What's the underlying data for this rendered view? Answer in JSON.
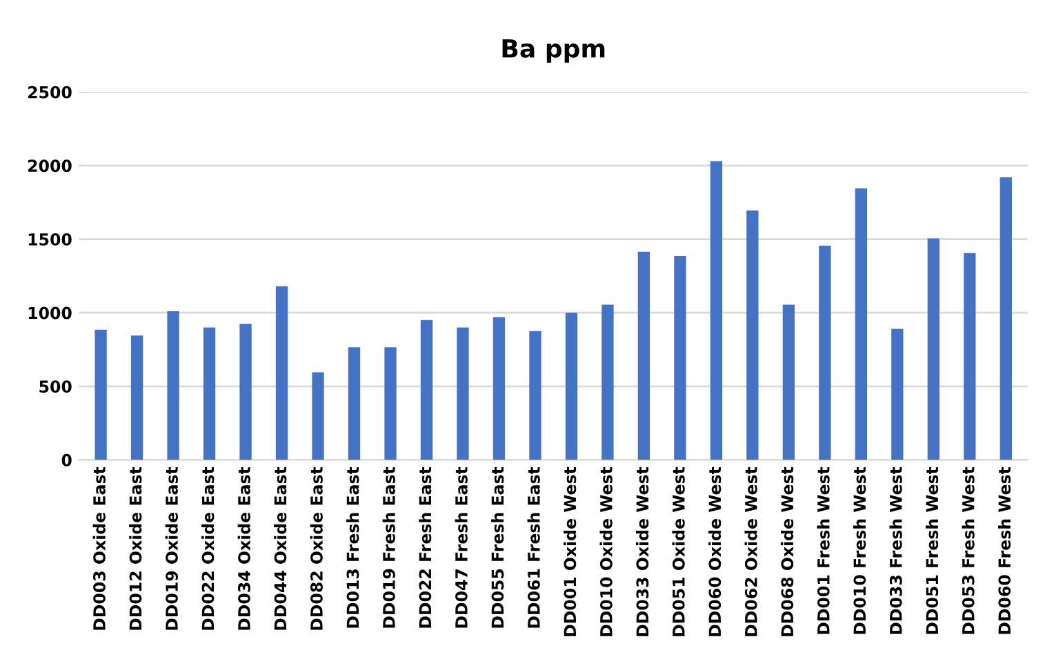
{
  "chart_data": {
    "type": "bar",
    "title": "Ba ppm",
    "categories": [
      "DD003 Oxide East",
      "DD012 Oxide East",
      "DD019 Oxide East",
      "DD022 Oxide East",
      "DD034 Oxide East",
      "DD044 Oxide East",
      "DD082 Oxide East",
      "DD013 Fresh East",
      "DD019 Fresh East",
      "DD022 Fresh East",
      "DD047 Fresh East",
      "DD055 Fresh East",
      "DD061 Fresh East",
      "DD001 Oxide West",
      "DD010 Oxide West",
      "DD033 Oxide West",
      "DD051 Oxide West",
      "DD060 Oxide West",
      "DD062 Oxide West",
      "DD068 Oxide West",
      "DD001 Fresh West",
      "DD010 Fresh West",
      "DD033 Fresh West",
      "DD051 Fresh West",
      "DD053 Fresh West",
      "DD060 Fresh West"
    ],
    "values": [
      885,
      845,
      1010,
      900,
      925,
      1180,
      595,
      765,
      765,
      950,
      900,
      970,
      875,
      1000,
      1055,
      1415,
      1385,
      2030,
      1695,
      1055,
      1455,
      1845,
      890,
      1505,
      1405,
      1920
    ],
    "color": "#4472c4",
    "ylim": [
      0,
      2500
    ],
    "yticks": [
      0,
      500,
      1000,
      1500,
      2000,
      2500
    ],
    "grid": "y"
  }
}
